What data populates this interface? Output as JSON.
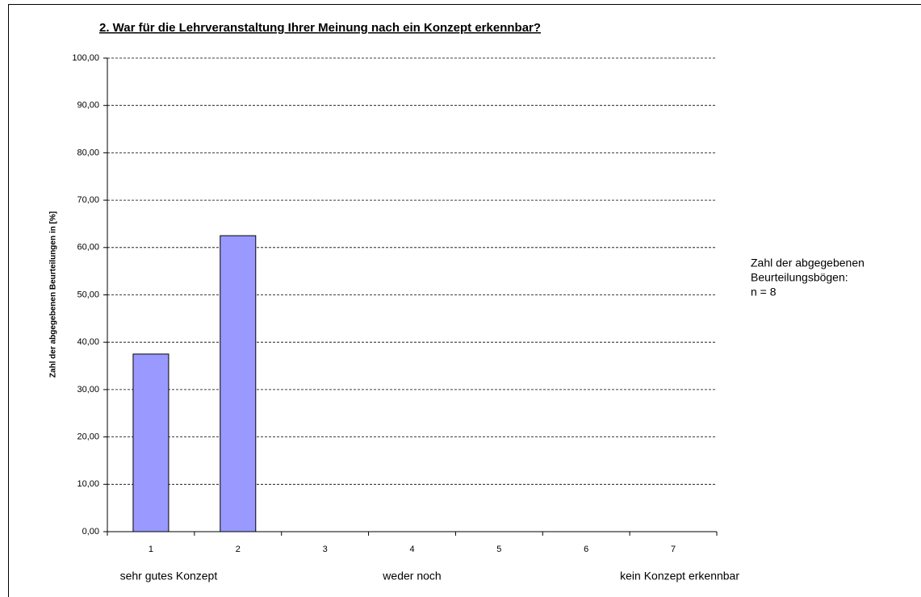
{
  "chart_data": {
    "type": "bar",
    "title": "2. War für die Lehrveranstaltung Ihrer Meinung nach ein Konzept erkennbar?",
    "y_label": "Zahl der abgegebenen Beurteilungen in [%]",
    "categories": [
      "1",
      "2",
      "3",
      "4",
      "5",
      "6",
      "7"
    ],
    "values": [
      37.5,
      62.5,
      0,
      0,
      0,
      0,
      0
    ],
    "color": "#9999ff",
    "ylim": [
      0,
      100
    ],
    "yticks": [
      {
        "value": 0,
        "label": "0,00"
      },
      {
        "value": 10,
        "label": "10,00"
      },
      {
        "value": 20,
        "label": "20,00"
      },
      {
        "value": 30,
        "label": "30,00"
      },
      {
        "value": 40,
        "label": "40,00"
      },
      {
        "value": 50,
        "label": "50,00"
      },
      {
        "value": 60,
        "label": "60,00"
      },
      {
        "value": 70,
        "label": "70,00"
      },
      {
        "value": 80,
        "label": "80,00"
      },
      {
        "value": 90,
        "label": "90,00"
      },
      {
        "value": 100,
        "label": "100,00"
      }
    ],
    "grid": true,
    "scale_labels": [
      "sehr gutes Konzept",
      "weder noch",
      "kein Konzept erkennbar"
    ],
    "note": [
      "Zahl der abgegebenen",
      "Beurteilungsbögen:",
      "n = 8"
    ]
  }
}
